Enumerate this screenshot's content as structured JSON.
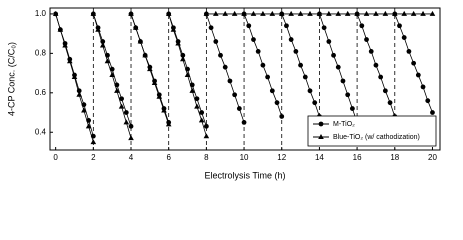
{
  "chart_data": {
    "type": "line",
    "x_label": "Electrolysis Time (h)",
    "y_label": "4-CP Conc. (C/C₀)",
    "xlim": [
      -0.3,
      20.4
    ],
    "ylim": [
      0.31,
      1.03
    ],
    "xticks": [
      0,
      2,
      4,
      6,
      8,
      10,
      12,
      14,
      16,
      18,
      20
    ],
    "yticks": [
      0.4,
      0.6,
      0.8,
      {
        "value": 1,
        "label": "1.0"
      }
    ],
    "cycle_boundaries": [
      2,
      4,
      6,
      8,
      10,
      12,
      14,
      16,
      18
    ],
    "legend": "lower right",
    "series": [
      {
        "name": "M-TiO₂",
        "color": "#000000",
        "marker": "circle",
        "x": [
          0,
          0.25,
          0.5,
          0.75,
          1,
          1.25,
          1.5,
          1.75,
          2,
          null,
          2,
          2.25,
          2.5,
          2.75,
          3,
          3.25,
          3.5,
          3.75,
          4,
          null,
          4,
          4.25,
          4.5,
          4.75,
          5,
          5.25,
          5.5,
          5.75,
          6,
          null,
          6,
          6.25,
          6.5,
          6.75,
          7,
          7.25,
          7.5,
          7.75,
          8,
          null,
          8,
          8.25,
          8.5,
          8.75,
          9,
          9.25,
          9.5,
          9.75,
          10,
          null,
          10,
          10.25,
          10.5,
          10.75,
          11,
          11.25,
          11.5,
          11.75,
          12,
          null,
          12,
          12.25,
          12.5,
          12.75,
          13,
          13.25,
          13.5,
          13.75,
          14,
          null,
          14,
          14.25,
          14.5,
          14.75,
          15,
          15.25,
          15.5,
          15.75,
          16,
          null,
          16,
          16.25,
          16.5,
          16.75,
          17,
          17.25,
          17.5,
          17.75,
          18,
          null,
          18,
          18.25,
          18.5,
          18.75,
          19,
          19.25,
          19.5,
          19.75,
          20
        ],
        "values": [
          1,
          0.92,
          0.85,
          0.77,
          0.69,
          0.61,
          0.54,
          0.46,
          0.38,
          null,
          1,
          0.93,
          0.86,
          0.79,
          0.72,
          0.64,
          0.57,
          0.5,
          0.43,
          null,
          1,
          0.93,
          0.86,
          0.79,
          0.73,
          0.66,
          0.59,
          0.52,
          0.45,
          null,
          1,
          0.93,
          0.86,
          0.79,
          0.72,
          0.64,
          0.57,
          0.5,
          0.43,
          null,
          1,
          0.93,
          0.86,
          0.79,
          0.73,
          0.66,
          0.59,
          0.52,
          0.45,
          null,
          1,
          0.94,
          0.87,
          0.81,
          0.74,
          0.68,
          0.61,
          0.55,
          0.48,
          null,
          1,
          0.94,
          0.87,
          0.81,
          0.74,
          0.68,
          0.61,
          0.55,
          0.48,
          null,
          1,
          0.93,
          0.86,
          0.79,
          0.73,
          0.66,
          0.59,
          0.52,
          0.45,
          null,
          1,
          0.94,
          0.87,
          0.81,
          0.74,
          0.68,
          0.61,
          0.55,
          0.48,
          null,
          1,
          0.94,
          0.88,
          0.81,
          0.75,
          0.69,
          0.63,
          0.56,
          0.5
        ]
      },
      {
        "name": "Blue-TiO₂ (w/ cathodization)",
        "color": "#000000",
        "marker": "triangle",
        "x": [
          0,
          0.25,
          0.5,
          0.75,
          1,
          1.25,
          1.5,
          1.75,
          2,
          null,
          2,
          2.25,
          2.5,
          2.75,
          3,
          3.25,
          3.5,
          3.75,
          4,
          null,
          4,
          4.25,
          4.5,
          4.75,
          5,
          5.25,
          5.5,
          5.75,
          6,
          null,
          6,
          6.25,
          6.5,
          6.75,
          7,
          7.25,
          7.5,
          7.75,
          8,
          null,
          8,
          8.5,
          9,
          9.5,
          10,
          10.5,
          11,
          11.5,
          12,
          12.5,
          13,
          13.5,
          14,
          14.5,
          15,
          15.5,
          16,
          16.5,
          17,
          17.5,
          18,
          18.5,
          19,
          19.5,
          20
        ],
        "values": [
          1,
          0.92,
          0.84,
          0.76,
          0.68,
          0.59,
          0.51,
          0.43,
          0.35,
          null,
          1,
          0.92,
          0.84,
          0.76,
          0.69,
          0.61,
          0.53,
          0.45,
          0.37,
          null,
          1,
          0.93,
          0.86,
          0.79,
          0.72,
          0.65,
          0.58,
          0.51,
          0.44,
          null,
          1,
          0.92,
          0.85,
          0.77,
          0.69,
          0.61,
          0.53,
          0.46,
          0.38,
          null,
          1,
          1,
          1,
          1,
          1,
          1,
          1,
          1,
          1,
          1,
          1,
          1,
          1,
          1,
          1,
          1,
          1,
          1,
          1,
          1,
          1,
          1,
          1,
          1,
          1
        ]
      }
    ]
  }
}
